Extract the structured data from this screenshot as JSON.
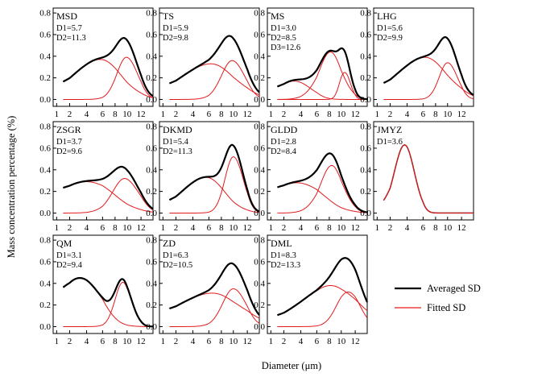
{
  "colors": {
    "averaged": "#000000",
    "fitted": "#e31a1c"
  },
  "chart_data": {
    "type": "line",
    "xlabel": "Diameter (μm)",
    "ylabel": "Mass concentration percentage (%)",
    "xlim": [
      1,
      14
    ],
    "ylim": [
      0,
      0.8
    ],
    "x_ticks": [
      "1",
      "2",
      "4",
      "6",
      "8",
      "10",
      "12"
    ],
    "y_ticks": [
      "0.0",
      "0.2",
      "0.4",
      "0.6",
      "0.8"
    ],
    "legend": {
      "position": "bottom-right",
      "entries": [
        "Averaged SD",
        "Fitted SD"
      ]
    },
    "panels": [
      {
        "name": "MSD",
        "params": [
          "D1=5.7",
          "D2=11.3"
        ],
        "components": [
          {
            "mu": 5.7,
            "sigma": 3.3,
            "amp": 0.37
          },
          {
            "mu": 9.9,
            "sigma": 1.6,
            "amp": 0.39
          }
        ]
      },
      {
        "name": "TS",
        "params": [
          "D1=5.9",
          "D2=9.8"
        ],
        "components": [
          {
            "mu": 6.3,
            "sigma": 3.8,
            "amp": 0.33
          },
          {
            "mu": 9.8,
            "sigma": 1.8,
            "amp": 0.36
          }
        ]
      },
      {
        "name": "MS",
        "params": [
          "D1=3.0",
          "D2=8.5",
          "D3=12.6"
        ],
        "components": [
          {
            "mu": 3.2,
            "sigma": 2.0,
            "amp": 0.17
          },
          {
            "mu": 8.2,
            "sigma": 1.8,
            "amp": 0.44
          },
          {
            "mu": 10.5,
            "sigma": 0.8,
            "amp": 0.25
          }
        ]
      },
      {
        "name": "LHG",
        "params": [
          "D1=5.6",
          "D2=9.9"
        ],
        "components": [
          {
            "mu": 6.3,
            "sigma": 3.5,
            "amp": 0.39
          },
          {
            "mu": 10.0,
            "sigma": 1.4,
            "amp": 0.34
          }
        ]
      },
      {
        "name": "ZSGR",
        "params": [
          "D1=3.7",
          "D2=9.6"
        ],
        "components": [
          {
            "mu": 4.0,
            "sigma": 3.8,
            "amp": 0.29
          },
          {
            "mu": 9.6,
            "sigma": 2.0,
            "amp": 0.32
          }
        ]
      },
      {
        "name": "DKMD",
        "params": [
          "D1=5.4",
          "D2=11.3"
        ],
        "components": [
          {
            "mu": 5.6,
            "sigma": 2.9,
            "amp": 0.33
          },
          {
            "mu": 10.0,
            "sigma": 1.4,
            "amp": 0.52
          }
        ]
      },
      {
        "name": "GLDD",
        "params": [
          "D1=2.8",
          "D2=8.4"
        ],
        "components": [
          {
            "mu": 3.5,
            "sigma": 3.5,
            "amp": 0.28
          },
          {
            "mu": 8.4,
            "sigma": 1.8,
            "amp": 0.44
          }
        ]
      },
      {
        "name": "JMYZ",
        "params": [
          "D1=3.6"
        ],
        "components": [
          {
            "mu": 3.7,
            "sigma": 1.2,
            "amp": 0.63
          }
        ]
      },
      {
        "name": "QM",
        "params": [
          "D1=3.1",
          "D2=9.4"
        ],
        "components": [
          {
            "mu": 3.2,
            "sigma": 2.6,
            "amp": 0.45
          },
          {
            "mu": 9.3,
            "sigma": 1.3,
            "amp": 0.41
          }
        ]
      },
      {
        "name": "ZD",
        "params": [
          "D1=6.3",
          "D2=10.5"
        ],
        "components": [
          {
            "mu": 6.5,
            "sigma": 4.5,
            "amp": 0.31
          },
          {
            "mu": 10.0,
            "sigma": 1.8,
            "amp": 0.35
          }
        ]
      },
      {
        "name": "DML",
        "params": [
          "D1=8.3",
          "D2=13.3"
        ],
        "components": [
          {
            "mu": 8.2,
            "sigma": 4.2,
            "amp": 0.38
          },
          {
            "mu": 11.0,
            "sigma": 1.8,
            "amp": 0.32
          }
        ]
      }
    ]
  }
}
